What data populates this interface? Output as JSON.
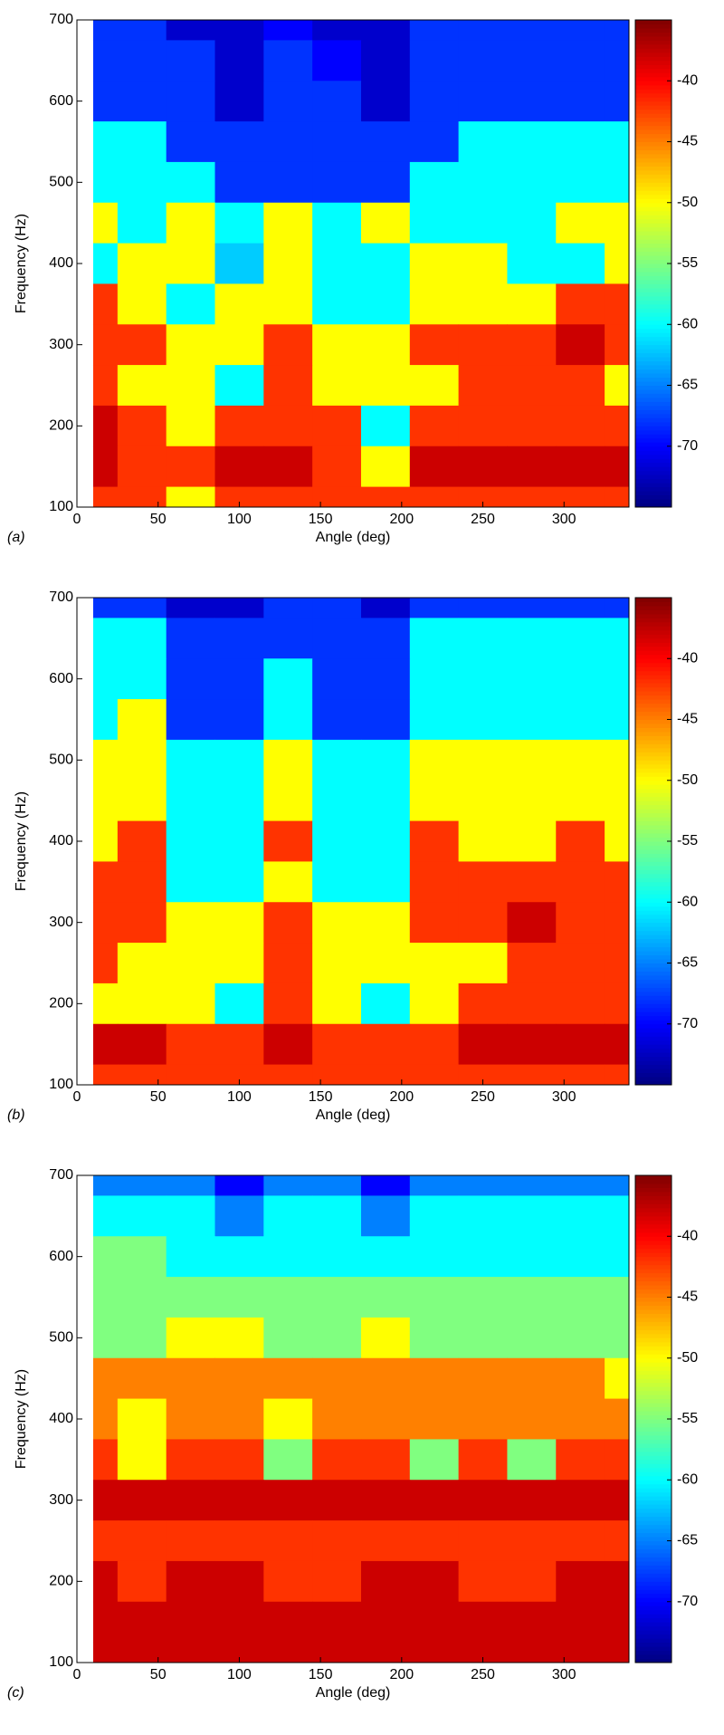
{
  "chart_data": [
    {
      "type": "contour",
      "panel_label": "(a)",
      "xlabel": "Angle (deg)",
      "ylabel": "Frequency (Hz)",
      "colormap": "jet",
      "x": [
        10,
        40,
        70,
        100,
        130,
        160,
        190,
        220,
        250,
        280,
        310,
        340
      ],
      "y": [
        700,
        650,
        600,
        550,
        500,
        450,
        400,
        350,
        300,
        250,
        200,
        150,
        100
      ],
      "values": [
        [
          -68,
          -68,
          -72,
          -72,
          -70,
          -72,
          -72,
          -68,
          -68,
          -68,
          -68,
          -68
        ],
        [
          -68,
          -68,
          -68,
          -72,
          -68,
          -70,
          -72,
          -68,
          -68,
          -68,
          -68,
          -68
        ],
        [
          -68,
          -68,
          -68,
          -72,
          -68,
          -68,
          -72,
          -68,
          -68,
          -68,
          -68,
          -68
        ],
        [
          -60,
          -60,
          -68,
          -68,
          -68,
          -68,
          -68,
          -68,
          -60,
          -60,
          -60,
          -60
        ],
        [
          -60,
          -60,
          -60,
          -68,
          -68,
          -68,
          -68,
          -60,
          -60,
          -60,
          -60,
          -60
        ],
        [
          -50,
          -60,
          -50,
          -60,
          -50,
          -60,
          -50,
          -60,
          -60,
          -60,
          -50,
          -50
        ],
        [
          -60,
          -50,
          -50,
          -62,
          -50,
          -60,
          -60,
          -50,
          -50,
          -60,
          -60,
          -50
        ],
        [
          -42,
          -50,
          -60,
          -50,
          -50,
          -60,
          -60,
          -50,
          -50,
          -50,
          -42,
          -42
        ],
        [
          -42,
          -42,
          -50,
          -50,
          -42,
          -50,
          -50,
          -42,
          -42,
          -42,
          -38,
          -42
        ],
        [
          -42,
          -50,
          -50,
          -60,
          -42,
          -50,
          -50,
          -50,
          -42,
          -42,
          -42,
          -50
        ],
        [
          -38,
          -42,
          -50,
          -42,
          -42,
          -42,
          -60,
          -42,
          -42,
          -42,
          -42,
          -42
        ],
        [
          -38,
          -42,
          -42,
          -38,
          -38,
          -42,
          -50,
          -38,
          -38,
          -38,
          -38,
          -38
        ],
        [
          -42,
          -42,
          -50,
          -42,
          -42,
          -42,
          -42,
          -42,
          -42,
          -42,
          -42,
          -42
        ]
      ],
      "xlim": [
        0,
        340
      ],
      "xticks": [
        0,
        50,
        100,
        150,
        200,
        250,
        300
      ],
      "ylim": [
        100,
        700
      ],
      "yticks": [
        100,
        200,
        300,
        400,
        500,
        600,
        700
      ],
      "clim": [
        -75,
        -35
      ],
      "cticks": [
        -40,
        -45,
        -50,
        -55,
        -60,
        -65,
        -70
      ]
    },
    {
      "type": "contour",
      "panel_label": "(b)",
      "xlabel": "Angle (deg)",
      "ylabel": "Frequency (Hz)",
      "colormap": "jet",
      "x": [
        10,
        40,
        70,
        100,
        130,
        160,
        190,
        220,
        250,
        280,
        310,
        340
      ],
      "y": [
        700,
        650,
        600,
        550,
        500,
        450,
        400,
        350,
        300,
        250,
        200,
        150,
        100
      ],
      "values": [
        [
          -68,
          -68,
          -72,
          -72,
          -68,
          -68,
          -72,
          -68,
          -68,
          -68,
          -68,
          -68
        ],
        [
          -60,
          -60,
          -68,
          -68,
          -68,
          -68,
          -68,
          -60,
          -60,
          -60,
          -60,
          -60
        ],
        [
          -60,
          -60,
          -68,
          -68,
          -60,
          -68,
          -68,
          -60,
          -60,
          -60,
          -60,
          -60
        ],
        [
          -60,
          -50,
          -68,
          -68,
          -60,
          -68,
          -68,
          -60,
          -60,
          -60,
          -60,
          -60
        ],
        [
          -50,
          -50,
          -60,
          -60,
          -50,
          -60,
          -60,
          -50,
          -50,
          -50,
          -50,
          -50
        ],
        [
          -50,
          -50,
          -60,
          -60,
          -50,
          -60,
          -60,
          -50,
          -50,
          -50,
          -50,
          -50
        ],
        [
          -50,
          -42,
          -60,
          -60,
          -42,
          -60,
          -60,
          -42,
          -50,
          -50,
          -42,
          -50
        ],
        [
          -42,
          -42,
          -60,
          -60,
          -50,
          -60,
          -60,
          -42,
          -42,
          -42,
          -42,
          -42
        ],
        [
          -42,
          -42,
          -50,
          -50,
          -42,
          -50,
          -50,
          -42,
          -42,
          -38,
          -42,
          -42
        ],
        [
          -42,
          -50,
          -50,
          -50,
          -42,
          -50,
          -50,
          -50,
          -50,
          -42,
          -42,
          -42
        ],
        [
          -50,
          -50,
          -50,
          -60,
          -42,
          -50,
          -60,
          -50,
          -42,
          -42,
          -42,
          -42
        ],
        [
          -38,
          -38,
          -42,
          -42,
          -38,
          -42,
          -42,
          -42,
          -38,
          -38,
          -38,
          -38
        ],
        [
          -42,
          -42,
          -42,
          -42,
          -42,
          -42,
          -42,
          -42,
          -42,
          -42,
          -42,
          -42
        ]
      ],
      "xlim": [
        0,
        340
      ],
      "xticks": [
        0,
        50,
        100,
        150,
        200,
        250,
        300
      ],
      "ylim": [
        100,
        700
      ],
      "yticks": [
        100,
        200,
        300,
        400,
        500,
        600,
        700
      ],
      "clim": [
        -75,
        -35
      ],
      "cticks": [
        -40,
        -45,
        -50,
        -55,
        -60,
        -65,
        -70
      ]
    },
    {
      "type": "contour",
      "panel_label": "(c)",
      "xlabel": "Angle (deg)",
      "ylabel": "Frequency (Hz)",
      "colormap": "jet",
      "x": [
        10,
        40,
        70,
        100,
        130,
        160,
        190,
        220,
        250,
        280,
        310,
        340
      ],
      "y": [
        700,
        650,
        600,
        550,
        500,
        450,
        400,
        350,
        300,
        250,
        200,
        150,
        100
      ],
      "values": [
        [
          -65,
          -65,
          -65,
          -70,
          -65,
          -65,
          -70,
          -65,
          -65,
          -65,
          -65,
          -65
        ],
        [
          -60,
          -60,
          -60,
          -65,
          -60,
          -60,
          -65,
          -60,
          -60,
          -60,
          -60,
          -60
        ],
        [
          -55,
          -55,
          -60,
          -60,
          -60,
          -60,
          -60,
          -60,
          -60,
          -60,
          -60,
          -60
        ],
        [
          -55,
          -55,
          -55,
          -55,
          -55,
          -55,
          -55,
          -55,
          -55,
          -55,
          -55,
          -55
        ],
        [
          -55,
          -55,
          -50,
          -50,
          -55,
          -55,
          -50,
          -55,
          -55,
          -55,
          -55,
          -55
        ],
        [
          -45,
          -45,
          -45,
          -45,
          -45,
          -45,
          -45,
          -45,
          -45,
          -45,
          -45,
          -50
        ],
        [
          -45,
          -50,
          -45,
          -45,
          -50,
          -45,
          -45,
          -45,
          -45,
          -45,
          -45,
          -45
        ],
        [
          -42,
          -50,
          -42,
          -42,
          -55,
          -42,
          -42,
          -55,
          -42,
          -55,
          -42,
          -42
        ],
        [
          -38,
          -38,
          -38,
          -38,
          -38,
          -38,
          -38,
          -38,
          -38,
          -38,
          -38,
          -38
        ],
        [
          -42,
          -42,
          -42,
          -42,
          -42,
          -42,
          -42,
          -42,
          -42,
          -42,
          -42,
          -42
        ],
        [
          -38,
          -42,
          -38,
          -38,
          -42,
          -42,
          -38,
          -38,
          -42,
          -42,
          -38,
          -38
        ],
        [
          -38,
          -38,
          -38,
          -38,
          -38,
          -38,
          -38,
          -38,
          -38,
          -38,
          -38,
          -38
        ],
        [
          -38,
          -38,
          -38,
          -38,
          -38,
          -38,
          -38,
          -38,
          -38,
          -38,
          -38,
          -38
        ]
      ],
      "xlim": [
        0,
        340
      ],
      "xticks": [
        0,
        50,
        100,
        150,
        200,
        250,
        300
      ],
      "ylim": [
        100,
        700
      ],
      "yticks": [
        100,
        200,
        300,
        400,
        500,
        600,
        700
      ],
      "clim": [
        -75,
        -35
      ],
      "cticks": [
        -40,
        -45,
        -50,
        -55,
        -60,
        -65,
        -70
      ]
    }
  ]
}
